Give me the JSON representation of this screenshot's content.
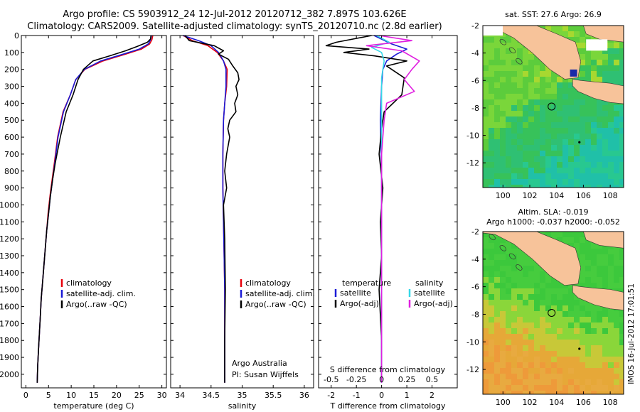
{
  "header": {
    "title_line1": "Argo profile: CS 5903912_24 12-Jul-2012 20120712_382 7.897S 103.626E",
    "title_line2": "Climatology: CARS2009. Satellite-adjusted climatology: synTS_20120710.nc (2.8d earlier)"
  },
  "side_stamp": "IMOS 16-Jul-2012 17:01:51",
  "colors": {
    "climatology": "#e8000b",
    "satellite": "#1a1ad6",
    "argo": "#000000",
    "salinity_satellite": "#35d8e8",
    "salinity_argo": "#e020e0",
    "land": "#f7c39a",
    "ocean_green": "#3cc83c"
  },
  "chart_data": [
    {
      "type": "line",
      "name": "temperature-panel",
      "xlabel": "temperature (deg C)",
      "ylabel": "",
      "xlim": [
        -1,
        31
      ],
      "ylim": [
        2080,
        0
      ],
      "x_ticks": [
        0,
        5,
        10,
        15,
        20,
        25,
        30
      ],
      "y_ticks": [
        0,
        100,
        200,
        300,
        400,
        500,
        600,
        700,
        800,
        900,
        1000,
        1100,
        1200,
        1300,
        1400,
        1500,
        1600,
        1700,
        1800,
        1900,
        2000
      ],
      "legend": [
        "climatology",
        "satellite-adj. clim.",
        "Argo(..raw -QC)"
      ],
      "legend_position": "lower-right",
      "series": [
        {
          "name": "climatology",
          "x": [
            28.0,
            27.8,
            27.3,
            25.5,
            22.0,
            17.0,
            13.0,
            11.0,
            9.8,
            8.2,
            7.0,
            6.3,
            5.8,
            5.3,
            4.9,
            4.6,
            4.3,
            4.0,
            3.7,
            3.4,
            3.2,
            3.0,
            2.8,
            2.6,
            2.5
          ],
          "y": [
            0,
            25,
            50,
            80,
            110,
            150,
            200,
            260,
            350,
            450,
            600,
            750,
            850,
            950,
            1050,
            1150,
            1250,
            1350,
            1450,
            1550,
            1650,
            1750,
            1850,
            1950,
            2050
          ]
        },
        {
          "name": "satellite",
          "x": [
            27.7,
            27.5,
            27.0,
            25.0,
            21.5,
            16.5,
            12.9,
            11.0,
            9.8,
            8.3,
            7.1,
            6.4,
            5.9,
            5.4,
            5.0,
            4.6,
            4.3,
            4.0,
            3.7,
            3.4,
            3.2,
            3.0,
            2.8,
            2.6,
            2.5
          ],
          "y": [
            0,
            25,
            50,
            80,
            110,
            150,
            200,
            260,
            350,
            450,
            600,
            750,
            850,
            950,
            1050,
            1150,
            1250,
            1350,
            1450,
            1550,
            1650,
            1750,
            1850,
            1950,
            2050
          ]
        },
        {
          "name": "Argo",
          "x": [
            27.6,
            27.5,
            26.8,
            24.5,
            22.0,
            18.5,
            14.8,
            12.7,
            11.5,
            10.4,
            8.9,
            7.6,
            6.5,
            5.9,
            5.4,
            5.0,
            4.6,
            4.3,
            4.0,
            3.7,
            3.4,
            3.2,
            3.0,
            2.8,
            2.6,
            2.5
          ],
          "y": [
            0,
            20,
            40,
            65,
            90,
            120,
            150,
            200,
            260,
            350,
            450,
            600,
            750,
            850,
            950,
            1050,
            1150,
            1250,
            1350,
            1450,
            1550,
            1650,
            1750,
            1850,
            1950,
            2050
          ]
        }
      ]
    },
    {
      "type": "line",
      "name": "salinity-panel",
      "xlabel": "salinity",
      "ylabel": "",
      "xlim": [
        33.85,
        36.15
      ],
      "ylim": [
        2080,
        0
      ],
      "x_ticks": [
        34,
        34.5,
        35,
        35.5,
        36
      ],
      "legend": [
        "climatology",
        "satellite-adj. clim.",
        "Argo(..raw -QC)"
      ],
      "legend_position": "lower-right",
      "annotation": [
        "Argo Australia",
        "PI: Susan Wijffels"
      ],
      "series": [
        {
          "name": "climatology",
          "x": [
            34.05,
            34.2,
            34.45,
            34.6,
            34.7,
            34.76,
            34.75,
            34.72,
            34.7,
            34.69,
            34.69,
            34.7,
            34.71,
            34.72,
            34.72,
            34.72,
            34.72
          ],
          "y": [
            0,
            30,
            60,
            100,
            150,
            200,
            300,
            400,
            500,
            700,
            900,
            1100,
            1300,
            1500,
            1700,
            1900,
            2050
          ]
        },
        {
          "name": "satellite",
          "x": [
            34.05,
            34.3,
            34.5,
            34.62,
            34.7,
            34.74,
            34.74,
            34.72,
            34.7,
            34.69,
            34.69,
            34.7,
            34.71,
            34.72,
            34.72,
            34.72,
            34.72
          ],
          "y": [
            0,
            30,
            60,
            100,
            150,
            200,
            300,
            400,
            500,
            700,
            900,
            1100,
            1300,
            1500,
            1700,
            1900,
            2050
          ]
        },
        {
          "name": "Argo",
          "x": [
            34.08,
            34.15,
            34.55,
            34.7,
            34.62,
            34.78,
            34.85,
            34.93,
            34.95,
            34.9,
            34.93,
            34.88,
            34.9,
            34.8,
            34.77,
            34.8,
            34.75,
            34.72,
            34.75,
            34.7,
            34.72,
            34.73,
            34.72,
            34.72
          ],
          "y": [
            0,
            30,
            60,
            90,
            110,
            140,
            180,
            220,
            260,
            300,
            350,
            400,
            450,
            500,
            550,
            600,
            700,
            800,
            900,
            1000,
            1200,
            1500,
            1800,
            2050
          ]
        }
      ]
    },
    {
      "type": "line",
      "name": "difference-panel",
      "xlabel": "T difference from climatology",
      "xlabel_top": "S difference from climatology",
      "ylabel": "",
      "xlim": [
        -2.5,
        3.0
      ],
      "ylim": [
        2080,
        0
      ],
      "x_ticks": [
        -2,
        -1,
        0,
        1,
        2
      ],
      "x_ticks_top": [
        "-0.5",
        "-0.25",
        "0",
        "0.25",
        "0.5"
      ],
      "x_ticks_top_positions": [
        -2,
        -1,
        0,
        1,
        2
      ],
      "legend_left_title": "temperature",
      "legend_left": [
        "satellite",
        "Argo(-adj)"
      ],
      "legend_right_title": "salinity",
      "legend_right": [
        "satellite",
        "Argo(-adj)"
      ],
      "series": [
        {
          "name": "temperature satellite",
          "x": [
            -0.3,
            0.4,
            1.0,
            0.6,
            0.2,
            0.05,
            0.0,
            -0.05,
            0.0,
            0.0,
            0.0,
            0.0,
            0.0,
            0.0
          ],
          "y": [
            0,
            50,
            80,
            110,
            150,
            200,
            300,
            500,
            800,
            1100,
            1400,
            1700,
            1900,
            2050
          ]
        },
        {
          "name": "temperature Argo",
          "x": [
            -0.4,
            -1.8,
            -2.2,
            -0.5,
            -1.5,
            -0.3,
            1.0,
            0.2,
            0.9,
            0.8,
            0.1,
            0.0,
            -0.1,
            0.05,
            -0.05,
            0.0,
            -0.1,
            0.0,
            0.0
          ],
          "y": [
            0,
            40,
            60,
            80,
            100,
            120,
            150,
            180,
            250,
            350,
            450,
            550,
            700,
            900,
            1100,
            1300,
            1500,
            1800,
            2050
          ]
        },
        {
          "name": "salinity satellite",
          "x": [
            -0.2,
            0.3,
            -0.4,
            0.0,
            0.1,
            0.0,
            0.0,
            0.0,
            0.0,
            0.0,
            0.0
          ],
          "y": [
            0,
            40,
            70,
            100,
            150,
            250,
            400,
            700,
            1100,
            1500,
            2050
          ]
        },
        {
          "name": "salinity Argo",
          "x": [
            -0.1,
            1.2,
            -0.6,
            0.8,
            1.5,
            1.2,
            0.9,
            1.3,
            0.2,
            0.1,
            0.0,
            0.0,
            0.0,
            0.0
          ],
          "y": [
            0,
            30,
            60,
            90,
            150,
            200,
            260,
            330,
            400,
            500,
            700,
            1000,
            1500,
            2050
          ]
        }
      ]
    },
    {
      "type": "heatmap",
      "name": "sst-map",
      "title": "sat. SST: 27.6  Argo: 26.9",
      "x_ticks": [
        100,
        102,
        104,
        106,
        108
      ],
      "y_ticks": [
        -2,
        -4,
        -6,
        -8,
        -10,
        -12
      ],
      "xlim": [
        98.5,
        109
      ],
      "ylim": [
        -13.8,
        -2
      ],
      "argo_position": {
        "lon": 103.626,
        "lat": -7.897
      }
    },
    {
      "type": "heatmap",
      "name": "sla-map",
      "title_line1": "Altim. SLA: -0.019",
      "title_line2": "Argo h1000: -0.037 h2000: -0.052",
      "x_ticks": [
        100,
        102,
        104,
        106,
        108
      ],
      "y_ticks": [
        -2,
        -4,
        -6,
        -8,
        -10,
        -12
      ],
      "xlim": [
        98.5,
        109
      ],
      "ylim": [
        -13.8,
        -2
      ],
      "argo_position": {
        "lon": 103.626,
        "lat": -7.897
      }
    }
  ]
}
